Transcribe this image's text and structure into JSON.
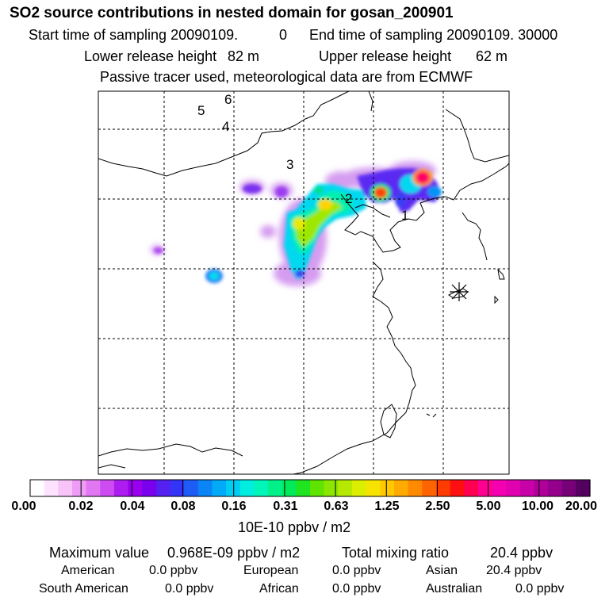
{
  "title": "SO2 source contributions in nested domain for gosan_200901",
  "header": {
    "start_label": "Start time of sampling 20090109.",
    "start_value": "0",
    "end_label": "End time of sampling 20090109. 30000",
    "lower_label": "Lower release height",
    "lower_value": "82 m",
    "upper_label": "Upper release height",
    "upper_value": "62 m",
    "tracer_note": "Passive tracer used, meteorological data are from ECMWF"
  },
  "map": {
    "region_labels": [
      "1",
      "2",
      "3",
      "4",
      "5",
      "6"
    ],
    "receptor_marker": "asterisk-receptor-icon"
  },
  "colorbar": {
    "labels": [
      "0.00",
      "0.02",
      "0.04",
      "0.08",
      "0.16",
      "0.31",
      "0.63",
      "1.25",
      "2.50",
      "5.00",
      "10.00",
      "20.00"
    ],
    "units": "10E-10 ppbv / m2",
    "colors": [
      "#ffffff",
      "#fde3ff",
      "#f8c4f8",
      "#ee9cf6",
      "#e277f4",
      "#cd4cf2",
      "#ad1df0",
      "#9800ee",
      "#7a00ee",
      "#5520f0",
      "#3434f6",
      "#1e5cf6",
      "#0b84f6",
      "#00aaf6",
      "#00cdf2",
      "#00ede0",
      "#00f5b8",
      "#00f08a",
      "#00ea5a",
      "#20e420",
      "#5ee400",
      "#8ce600",
      "#b5ea00",
      "#dcee00",
      "#f6e400",
      "#ffc800",
      "#ffaa00",
      "#ff8a00",
      "#ff6400",
      "#ff3c00",
      "#ff1010",
      "#ff0050",
      "#ff0090",
      "#f400b0",
      "#e000b0",
      "#c800a8",
      "#b0009c",
      "#94008c",
      "#760078",
      "#540060"
    ]
  },
  "footer": {
    "max_label": "Maximum value",
    "max_value": "0.968E-09 ppbv / m2",
    "total_label": "Total mixing ratio",
    "total_value": "20.4 ppbv",
    "american_label": "American",
    "american_value": "0.0 ppbv",
    "european_label": "European",
    "european_value": "0.0 ppbv",
    "asian_label": "Asian",
    "asian_value": "20.4 ppbv",
    "south_american_label": "South American",
    "south_american_value": "0.0 ppbv",
    "african_label": "African",
    "african_value": "0.0 ppbv",
    "australian_label": "Australian",
    "australian_value": "0.0 ppbv"
  }
}
